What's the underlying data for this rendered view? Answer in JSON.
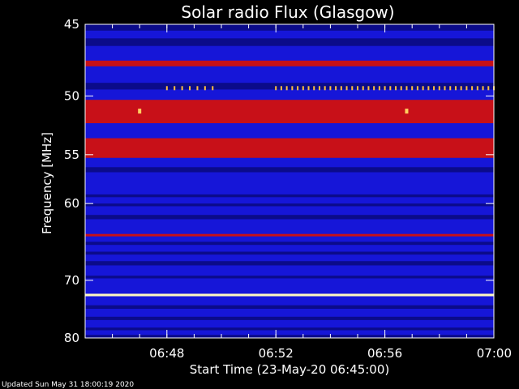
{
  "chart_data": {
    "type": "heatmap",
    "title": "Solar radio Flux (Glasgow)",
    "xlabel": "Start Time (23-May-20 06:45:00)",
    "ylabel": "Frequency [MHz]",
    "x_ticks": [
      "06:48",
      "06:52",
      "06:56",
      "07:00"
    ],
    "x_tick_minutes": [
      3,
      7,
      11,
      15
    ],
    "xlim_minutes": [
      0,
      15
    ],
    "y_ticks": [
      45,
      50,
      55,
      60,
      70,
      80
    ],
    "ylim": [
      45,
      80
    ],
    "y_scale": "reciprocal",
    "grid": false,
    "colors": {
      "background": "#000000",
      "base": "#1616d8",
      "low": "#0b0b8a",
      "high": "#c81018",
      "peak": "#fff8c0"
    },
    "bands": [
      {
        "from": 45.0,
        "to": 45.4,
        "level": "low"
      },
      {
        "from": 45.9,
        "to": 46.4,
        "level": "low"
      },
      {
        "from": 47.4,
        "to": 47.8,
        "level": "high"
      },
      {
        "from": 49.0,
        "to": 49.5,
        "level": "low"
      },
      {
        "from": 50.3,
        "to": 52.2,
        "level": "high"
      },
      {
        "from": 53.5,
        "to": 55.3,
        "level": "high"
      },
      {
        "from": 56.2,
        "to": 56.7,
        "level": "low"
      },
      {
        "from": 59.0,
        "to": 59.3,
        "level": "low"
      },
      {
        "from": 60.0,
        "to": 60.3,
        "level": "low"
      },
      {
        "from": 61.3,
        "to": 61.8,
        "level": "low"
      },
      {
        "from": 63.6,
        "to": 63.9,
        "level": "high"
      },
      {
        "from": 64.6,
        "to": 65.0,
        "level": "low"
      },
      {
        "from": 65.9,
        "to": 66.3,
        "level": "low"
      },
      {
        "from": 67.2,
        "to": 67.8,
        "level": "low"
      },
      {
        "from": 69.3,
        "to": 69.7,
        "level": "low"
      },
      {
        "from": 72.1,
        "to": 72.5,
        "level": "peak"
      },
      {
        "from": 74.0,
        "to": 74.6,
        "level": "low"
      },
      {
        "from": 76.0,
        "to": 76.6,
        "level": "low"
      },
      {
        "from": 78.0,
        "to": 78.5,
        "level": "low"
      },
      {
        "from": 79.4,
        "to": 80.0,
        "level": "low"
      }
    ],
    "bursts": [
      {
        "freq": 49.4,
        "from_minute": 3.0,
        "to_minute": 4.8,
        "step_minute": 0.28
      },
      {
        "freq": 49.4,
        "from_minute": 7.0,
        "to_minute": 15.0,
        "step_minute": 0.2
      }
    ],
    "spots": [
      {
        "freq": 51.2,
        "minute": 2.0
      },
      {
        "freq": 51.2,
        "minute": 11.8
      }
    ]
  },
  "footer": {
    "updated": "Updated Sun May 31 18:00:19 2020"
  }
}
